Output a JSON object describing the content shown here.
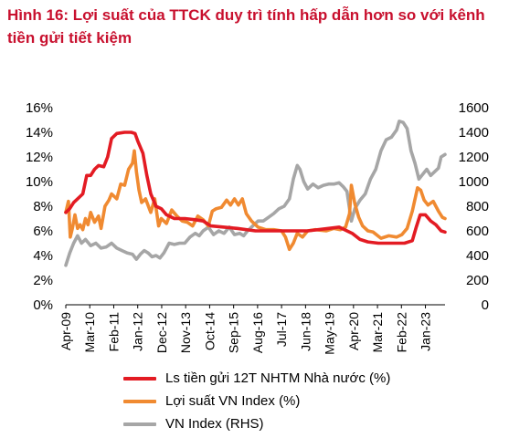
{
  "figure": {
    "title": "Hình 16: Lợi suất của TTCK duy trì tính hấp dẫn hơn so với kênh tiền gửi tiết kiệm"
  },
  "chart_data": {
    "type": "line",
    "title": "Hình 16: Lợi suất của TTCK duy trì tính hấp dẫn hơn so với kênh tiền gửi tiết kiệm",
    "x_range": [
      2009.25,
      2023.75
    ],
    "x_tick_labels": [
      "Apr-09",
      "Mar-10",
      "Feb-11",
      "Jan-12",
      "Dec-12",
      "Nov-13",
      "Oct-14",
      "Sep-15",
      "Aug-16",
      "Jul-17",
      "Jun-18",
      "May-19",
      "Apr-20",
      "Mar-21",
      "Feb-22",
      "Jan-23"
    ],
    "x_tick_values": [
      2009.25,
      2010.167,
      2011.083,
      2012.0,
      2012.917,
      2013.833,
      2014.75,
      2015.667,
      2016.583,
      2017.5,
      2018.417,
      2019.333,
      2020.25,
      2021.167,
      2022.083,
      2023.0
    ],
    "y_left": {
      "min": 0,
      "max": 16,
      "ticks": [
        0,
        2,
        4,
        6,
        8,
        10,
        12,
        14,
        16
      ],
      "tick_labels": [
        "0%",
        "2%",
        "4%",
        "6%",
        "8%",
        "10%",
        "12%",
        "14%",
        "16%"
      ]
    },
    "y_right": {
      "min": 0,
      "max": 1600,
      "ticks": [
        0,
        200,
        400,
        600,
        800,
        1000,
        1200,
        1400,
        1600
      ],
      "tick_labels": [
        "0",
        "200",
        "400",
        "600",
        "800",
        "1000",
        "1200",
        "1400",
        "1600"
      ]
    },
    "grid": false,
    "legend_position": "bottom",
    "series": [
      {
        "name": "Ls tiền gửi 12T NHTM Nhà nước (%)",
        "axis": "left",
        "color": "#e31b23",
        "points": [
          [
            2009.25,
            7.5
          ],
          [
            2009.4,
            7.8
          ],
          [
            2009.55,
            8.3
          ],
          [
            2009.7,
            8.6
          ],
          [
            2009.9,
            9.0
          ],
          [
            2010.05,
            10.5
          ],
          [
            2010.2,
            10.5
          ],
          [
            2010.35,
            11.0
          ],
          [
            2010.5,
            11.3
          ],
          [
            2010.7,
            11.2
          ],
          [
            2010.85,
            12.0
          ],
          [
            2011.0,
            13.5
          ],
          [
            2011.2,
            13.9
          ],
          [
            2011.5,
            14.0
          ],
          [
            2011.75,
            14.0
          ],
          [
            2011.9,
            13.9
          ],
          [
            2012.0,
            13.3
          ],
          [
            2012.2,
            12.3
          ],
          [
            2012.35,
            10.5
          ],
          [
            2012.5,
            9.0
          ],
          [
            2012.7,
            8.0
          ],
          [
            2012.9,
            7.8
          ],
          [
            2013.1,
            7.3
          ],
          [
            2013.4,
            7.0
          ],
          [
            2013.8,
            7.0
          ],
          [
            2014.2,
            6.9
          ],
          [
            2014.5,
            6.8
          ],
          [
            2014.8,
            6.4
          ],
          [
            2015.3,
            6.3
          ],
          [
            2015.8,
            6.2
          ],
          [
            2016.5,
            6.0
          ],
          [
            2017.5,
            6.0
          ],
          [
            2018.5,
            6.0
          ],
          [
            2019.3,
            6.2
          ],
          [
            2019.7,
            6.3
          ],
          [
            2020.0,
            6.0
          ],
          [
            2020.2,
            5.8
          ],
          [
            2020.5,
            5.3
          ],
          [
            2020.8,
            5.1
          ],
          [
            2021.2,
            5.0
          ],
          [
            2021.8,
            5.0
          ],
          [
            2022.2,
            5.0
          ],
          [
            2022.5,
            5.2
          ],
          [
            2022.65,
            6.3
          ],
          [
            2022.8,
            7.3
          ],
          [
            2023.0,
            7.3
          ],
          [
            2023.2,
            6.8
          ],
          [
            2023.4,
            6.5
          ],
          [
            2023.6,
            6.0
          ],
          [
            2023.75,
            5.9
          ]
        ]
      },
      {
        "name": "Lợi suất VN Index (%)",
        "axis": "left",
        "color": "#f08a31",
        "points": [
          [
            2009.25,
            7.5
          ],
          [
            2009.35,
            8.4
          ],
          [
            2009.42,
            5.5
          ],
          [
            2009.5,
            6.2
          ],
          [
            2009.6,
            7.3
          ],
          [
            2009.7,
            6.2
          ],
          [
            2009.8,
            6.5
          ],
          [
            2009.9,
            6.1
          ],
          [
            2010.0,
            7.0
          ],
          [
            2010.1,
            6.5
          ],
          [
            2010.2,
            7.5
          ],
          [
            2010.35,
            6.7
          ],
          [
            2010.5,
            7.2
          ],
          [
            2010.6,
            6.2
          ],
          [
            2010.75,
            8.0
          ],
          [
            2010.9,
            8.5
          ],
          [
            2011.0,
            9.0
          ],
          [
            2011.2,
            8.6
          ],
          [
            2011.35,
            9.8
          ],
          [
            2011.5,
            9.7
          ],
          [
            2011.65,
            11.0
          ],
          [
            2011.8,
            11.5
          ],
          [
            2011.87,
            12.5
          ],
          [
            2011.95,
            10.8
          ],
          [
            2012.05,
            9.3
          ],
          [
            2012.15,
            8.3
          ],
          [
            2012.3,
            8.6
          ],
          [
            2012.5,
            7.5
          ],
          [
            2012.65,
            8.6
          ],
          [
            2012.8,
            6.4
          ],
          [
            2012.9,
            7.0
          ],
          [
            2013.1,
            6.6
          ],
          [
            2013.3,
            7.7
          ],
          [
            2013.5,
            7.2
          ],
          [
            2013.7,
            6.8
          ],
          [
            2013.9,
            6.7
          ],
          [
            2014.1,
            6.4
          ],
          [
            2014.3,
            7.2
          ],
          [
            2014.5,
            6.9
          ],
          [
            2014.7,
            6.4
          ],
          [
            2014.85,
            7.6
          ],
          [
            2015.0,
            7.8
          ],
          [
            2015.2,
            7.9
          ],
          [
            2015.4,
            8.5
          ],
          [
            2015.55,
            8.1
          ],
          [
            2015.7,
            8.6
          ],
          [
            2015.85,
            8.1
          ],
          [
            2016.0,
            8.6
          ],
          [
            2016.15,
            7.4
          ],
          [
            2016.35,
            6.8
          ],
          [
            2016.6,
            6.3
          ],
          [
            2016.9,
            6.1
          ],
          [
            2017.2,
            6.1
          ],
          [
            2017.5,
            6.0
          ],
          [
            2017.65,
            5.5
          ],
          [
            2017.8,
            4.5
          ],
          [
            2017.95,
            5.0
          ],
          [
            2018.1,
            5.8
          ],
          [
            2018.3,
            5.5
          ],
          [
            2018.5,
            6.0
          ],
          [
            2018.8,
            6.1
          ],
          [
            2019.2,
            6.0
          ],
          [
            2019.5,
            6.2
          ],
          [
            2019.75,
            6.1
          ],
          [
            2019.95,
            6.3
          ],
          [
            2020.1,
            7.4
          ],
          [
            2020.17,
            9.7
          ],
          [
            2020.3,
            8.2
          ],
          [
            2020.45,
            7.1
          ],
          [
            2020.6,
            6.4
          ],
          [
            2020.8,
            6.0
          ],
          [
            2021.0,
            5.9
          ],
          [
            2021.3,
            5.4
          ],
          [
            2021.6,
            5.6
          ],
          [
            2021.9,
            5.5
          ],
          [
            2022.1,
            5.7
          ],
          [
            2022.3,
            6.2
          ],
          [
            2022.5,
            7.6
          ],
          [
            2022.7,
            9.5
          ],
          [
            2022.82,
            9.3
          ],
          [
            2022.95,
            8.5
          ],
          [
            2023.1,
            8.1
          ],
          [
            2023.3,
            8.4
          ],
          [
            2023.5,
            7.6
          ],
          [
            2023.65,
            7.1
          ],
          [
            2023.75,
            7.0
          ]
        ]
      },
      {
        "name": "VN Index (RHS)",
        "axis": "right",
        "color": "#a6a6a6",
        "points": [
          [
            2009.25,
            320
          ],
          [
            2009.4,
            420
          ],
          [
            2009.55,
            500
          ],
          [
            2009.7,
            560
          ],
          [
            2009.85,
            500
          ],
          [
            2010.0,
            530
          ],
          [
            2010.2,
            480
          ],
          [
            2010.4,
            500
          ],
          [
            2010.6,
            460
          ],
          [
            2010.8,
            470
          ],
          [
            2011.0,
            500
          ],
          [
            2011.2,
            460
          ],
          [
            2011.4,
            440
          ],
          [
            2011.6,
            420
          ],
          [
            2011.8,
            410
          ],
          [
            2011.95,
            370
          ],
          [
            2012.1,
            410
          ],
          [
            2012.25,
            440
          ],
          [
            2012.4,
            420
          ],
          [
            2012.55,
            390
          ],
          [
            2012.7,
            400
          ],
          [
            2012.85,
            380
          ],
          [
            2013.0,
            420
          ],
          [
            2013.2,
            500
          ],
          [
            2013.4,
            490
          ],
          [
            2013.6,
            500
          ],
          [
            2013.8,
            500
          ],
          [
            2014.0,
            550
          ],
          [
            2014.2,
            580
          ],
          [
            2014.35,
            560
          ],
          [
            2014.5,
            600
          ],
          [
            2014.7,
            630
          ],
          [
            2014.9,
            570
          ],
          [
            2015.1,
            600
          ],
          [
            2015.3,
            580
          ],
          [
            2015.5,
            630
          ],
          [
            2015.7,
            570
          ],
          [
            2015.9,
            580
          ],
          [
            2016.05,
            560
          ],
          [
            2016.2,
            600
          ],
          [
            2016.4,
            640
          ],
          [
            2016.6,
            680
          ],
          [
            2016.8,
            680
          ],
          [
            2017.0,
            710
          ],
          [
            2017.2,
            740
          ],
          [
            2017.4,
            780
          ],
          [
            2017.6,
            800
          ],
          [
            2017.8,
            860
          ],
          [
            2017.95,
            1020
          ],
          [
            2018.1,
            1130
          ],
          [
            2018.2,
            1100
          ],
          [
            2018.35,
            1000
          ],
          [
            2018.5,
            940
          ],
          [
            2018.7,
            980
          ],
          [
            2018.9,
            950
          ],
          [
            2019.1,
            970
          ],
          [
            2019.3,
            980
          ],
          [
            2019.5,
            980
          ],
          [
            2019.7,
            990
          ],
          [
            2019.85,
            960
          ],
          [
            2020.0,
            920
          ],
          [
            2020.17,
            680
          ],
          [
            2020.3,
            780
          ],
          [
            2020.5,
            850
          ],
          [
            2020.7,
            900
          ],
          [
            2020.9,
            1020
          ],
          [
            2021.1,
            1100
          ],
          [
            2021.3,
            1250
          ],
          [
            2021.5,
            1340
          ],
          [
            2021.7,
            1360
          ],
          [
            2021.9,
            1420
          ],
          [
            2022.0,
            1490
          ],
          [
            2022.15,
            1480
          ],
          [
            2022.3,
            1430
          ],
          [
            2022.45,
            1250
          ],
          [
            2022.6,
            1150
          ],
          [
            2022.75,
            1020
          ],
          [
            2022.9,
            1060
          ],
          [
            2023.05,
            1100
          ],
          [
            2023.2,
            1050
          ],
          [
            2023.35,
            1080
          ],
          [
            2023.5,
            1110
          ],
          [
            2023.6,
            1200
          ],
          [
            2023.75,
            1220
          ]
        ]
      }
    ]
  }
}
